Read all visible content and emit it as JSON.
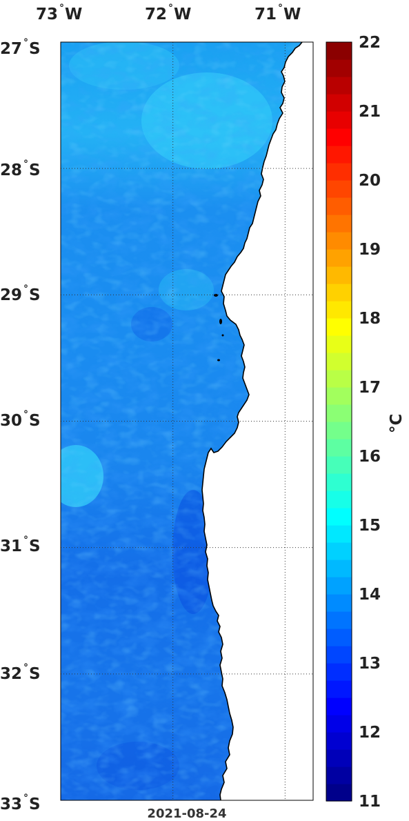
{
  "map": {
    "lon_labels": [
      {
        "value": "73",
        "hemi": "W"
      },
      {
        "value": "72",
        "hemi": "W"
      },
      {
        "value": "71",
        "hemi": "W"
      }
    ],
    "lat_labels": [
      {
        "value": "27",
        "hemi": "S"
      },
      {
        "value": "28",
        "hemi": "S"
      },
      {
        "value": "29",
        "hemi": "S"
      },
      {
        "value": "30",
        "hemi": "S"
      },
      {
        "value": "31",
        "hemi": "S"
      },
      {
        "value": "32",
        "hemi": "S"
      },
      {
        "value": "33",
        "hemi": "S"
      }
    ],
    "degree_symbol": "°",
    "date": "2021-08-24",
    "lon_range": [
      -73.0,
      -70.75
    ],
    "lat_range": [
      -33.0,
      -27.0
    ],
    "grid": "dotted",
    "variable": "sea surface temperature",
    "colormap": "jet",
    "land_color": "#ffffff",
    "coastline_color": "#000000"
  },
  "colorbar": {
    "min": 11,
    "max": 22,
    "ticks": [
      "22",
      "21",
      "20",
      "19",
      "18",
      "17",
      "16",
      "15",
      "14",
      "13",
      "12",
      "11"
    ],
    "unit_label": "°C",
    "levels": 44
  }
}
